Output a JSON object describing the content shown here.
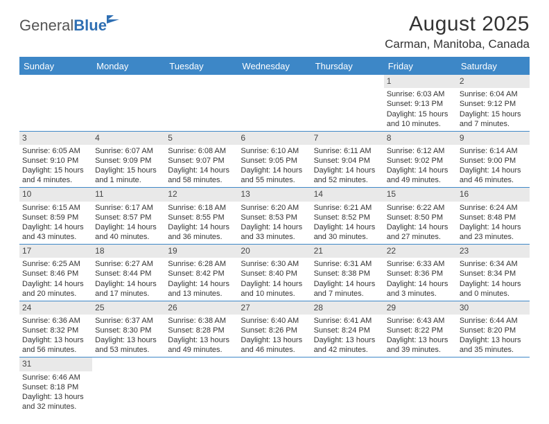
{
  "logo": {
    "text1": "General",
    "text2": "Blue"
  },
  "title": "August 2025",
  "location": "Carman, Manitoba, Canada",
  "colors": {
    "header_bg": "#3d87c7",
    "header_text": "#ffffff",
    "daynum_bg": "#e9e9e9",
    "rule": "#3d87c7",
    "body_text": "#333333",
    "logo_gray": "#555555",
    "logo_blue": "#2f6fb3",
    "page_bg": "#ffffff"
  },
  "typography": {
    "title_fontsize": 30,
    "location_fontsize": 17,
    "day_header_fontsize": 13,
    "cell_fontsize": 11
  },
  "day_names": [
    "Sunday",
    "Monday",
    "Tuesday",
    "Wednesday",
    "Thursday",
    "Friday",
    "Saturday"
  ],
  "weeks": [
    [
      null,
      null,
      null,
      null,
      null,
      {
        "n": "1",
        "sr": "Sunrise: 6:03 AM",
        "ss": "Sunset: 9:13 PM",
        "dl": "Daylight: 15 hours and 10 minutes."
      },
      {
        "n": "2",
        "sr": "Sunrise: 6:04 AM",
        "ss": "Sunset: 9:12 PM",
        "dl": "Daylight: 15 hours and 7 minutes."
      }
    ],
    [
      {
        "n": "3",
        "sr": "Sunrise: 6:05 AM",
        "ss": "Sunset: 9:10 PM",
        "dl": "Daylight: 15 hours and 4 minutes."
      },
      {
        "n": "4",
        "sr": "Sunrise: 6:07 AM",
        "ss": "Sunset: 9:09 PM",
        "dl": "Daylight: 15 hours and 1 minute."
      },
      {
        "n": "5",
        "sr": "Sunrise: 6:08 AM",
        "ss": "Sunset: 9:07 PM",
        "dl": "Daylight: 14 hours and 58 minutes."
      },
      {
        "n": "6",
        "sr": "Sunrise: 6:10 AM",
        "ss": "Sunset: 9:05 PM",
        "dl": "Daylight: 14 hours and 55 minutes."
      },
      {
        "n": "7",
        "sr": "Sunrise: 6:11 AM",
        "ss": "Sunset: 9:04 PM",
        "dl": "Daylight: 14 hours and 52 minutes."
      },
      {
        "n": "8",
        "sr": "Sunrise: 6:12 AM",
        "ss": "Sunset: 9:02 PM",
        "dl": "Daylight: 14 hours and 49 minutes."
      },
      {
        "n": "9",
        "sr": "Sunrise: 6:14 AM",
        "ss": "Sunset: 9:00 PM",
        "dl": "Daylight: 14 hours and 46 minutes."
      }
    ],
    [
      {
        "n": "10",
        "sr": "Sunrise: 6:15 AM",
        "ss": "Sunset: 8:59 PM",
        "dl": "Daylight: 14 hours and 43 minutes."
      },
      {
        "n": "11",
        "sr": "Sunrise: 6:17 AM",
        "ss": "Sunset: 8:57 PM",
        "dl": "Daylight: 14 hours and 40 minutes."
      },
      {
        "n": "12",
        "sr": "Sunrise: 6:18 AM",
        "ss": "Sunset: 8:55 PM",
        "dl": "Daylight: 14 hours and 36 minutes."
      },
      {
        "n": "13",
        "sr": "Sunrise: 6:20 AM",
        "ss": "Sunset: 8:53 PM",
        "dl": "Daylight: 14 hours and 33 minutes."
      },
      {
        "n": "14",
        "sr": "Sunrise: 6:21 AM",
        "ss": "Sunset: 8:52 PM",
        "dl": "Daylight: 14 hours and 30 minutes."
      },
      {
        "n": "15",
        "sr": "Sunrise: 6:22 AM",
        "ss": "Sunset: 8:50 PM",
        "dl": "Daylight: 14 hours and 27 minutes."
      },
      {
        "n": "16",
        "sr": "Sunrise: 6:24 AM",
        "ss": "Sunset: 8:48 PM",
        "dl": "Daylight: 14 hours and 23 minutes."
      }
    ],
    [
      {
        "n": "17",
        "sr": "Sunrise: 6:25 AM",
        "ss": "Sunset: 8:46 PM",
        "dl": "Daylight: 14 hours and 20 minutes."
      },
      {
        "n": "18",
        "sr": "Sunrise: 6:27 AM",
        "ss": "Sunset: 8:44 PM",
        "dl": "Daylight: 14 hours and 17 minutes."
      },
      {
        "n": "19",
        "sr": "Sunrise: 6:28 AM",
        "ss": "Sunset: 8:42 PM",
        "dl": "Daylight: 14 hours and 13 minutes."
      },
      {
        "n": "20",
        "sr": "Sunrise: 6:30 AM",
        "ss": "Sunset: 8:40 PM",
        "dl": "Daylight: 14 hours and 10 minutes."
      },
      {
        "n": "21",
        "sr": "Sunrise: 6:31 AM",
        "ss": "Sunset: 8:38 PM",
        "dl": "Daylight: 14 hours and 7 minutes."
      },
      {
        "n": "22",
        "sr": "Sunrise: 6:33 AM",
        "ss": "Sunset: 8:36 PM",
        "dl": "Daylight: 14 hours and 3 minutes."
      },
      {
        "n": "23",
        "sr": "Sunrise: 6:34 AM",
        "ss": "Sunset: 8:34 PM",
        "dl": "Daylight: 14 hours and 0 minutes."
      }
    ],
    [
      {
        "n": "24",
        "sr": "Sunrise: 6:36 AM",
        "ss": "Sunset: 8:32 PM",
        "dl": "Daylight: 13 hours and 56 minutes."
      },
      {
        "n": "25",
        "sr": "Sunrise: 6:37 AM",
        "ss": "Sunset: 8:30 PM",
        "dl": "Daylight: 13 hours and 53 minutes."
      },
      {
        "n": "26",
        "sr": "Sunrise: 6:38 AM",
        "ss": "Sunset: 8:28 PM",
        "dl": "Daylight: 13 hours and 49 minutes."
      },
      {
        "n": "27",
        "sr": "Sunrise: 6:40 AM",
        "ss": "Sunset: 8:26 PM",
        "dl": "Daylight: 13 hours and 46 minutes."
      },
      {
        "n": "28",
        "sr": "Sunrise: 6:41 AM",
        "ss": "Sunset: 8:24 PM",
        "dl": "Daylight: 13 hours and 42 minutes."
      },
      {
        "n": "29",
        "sr": "Sunrise: 6:43 AM",
        "ss": "Sunset: 8:22 PM",
        "dl": "Daylight: 13 hours and 39 minutes."
      },
      {
        "n": "30",
        "sr": "Sunrise: 6:44 AM",
        "ss": "Sunset: 8:20 PM",
        "dl": "Daylight: 13 hours and 35 minutes."
      }
    ],
    [
      {
        "n": "31",
        "sr": "Sunrise: 6:46 AM",
        "ss": "Sunset: 8:18 PM",
        "dl": "Daylight: 13 hours and 32 minutes."
      },
      null,
      null,
      null,
      null,
      null,
      null
    ]
  ]
}
